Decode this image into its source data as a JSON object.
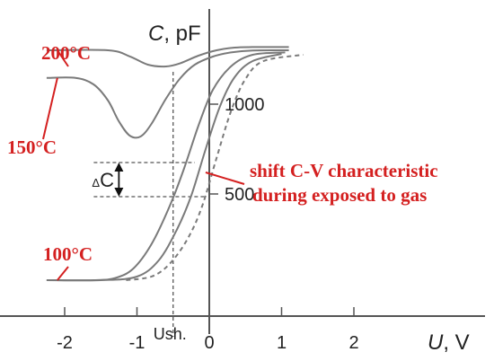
{
  "chart_data": {
    "type": "line",
    "xlabel": {
      "var": "U",
      "unit": ", V"
    },
    "ylabel": {
      "var": "C",
      "unit": ", pF"
    },
    "xlim": [
      -2.8,
      3.85
    ],
    "ylim": [
      -180,
      1780
    ],
    "x_ticks": [
      {
        "value": -2,
        "label": "-2"
      },
      {
        "value": -1,
        "label": "-1"
      },
      {
        "value": 0,
        "label": "0"
      },
      {
        "value": 1,
        "label": "1"
      },
      {
        "value": 2,
        "label": "2"
      }
    ],
    "y_ticks": [
      {
        "value": 500,
        "label": "500"
      },
      {
        "value": 1000,
        "label": "1000"
      }
    ],
    "grid": false,
    "legend": "none",
    "series": [
      {
        "style": "solid",
        "points": [
          [
            -2.25,
            1300
          ],
          [
            -1.4,
            1300
          ],
          [
            -1.1,
            1266
          ],
          [
            -0.85,
            1220
          ],
          [
            -0.6,
            1210
          ],
          [
            -0.4,
            1228
          ],
          [
            -0.15,
            1270
          ],
          [
            0.1,
            1300
          ],
          [
            0.35,
            1315
          ],
          [
            0.6,
            1318
          ],
          [
            1.1,
            1318
          ]
        ]
      },
      {
        "style": "solid",
        "points": [
          [
            -2.25,
            1146
          ],
          [
            -1.85,
            1146
          ],
          [
            -1.6,
            1110
          ],
          [
            -1.4,
            1020
          ],
          [
            -1.25,
            904
          ],
          [
            -1.1,
            825
          ],
          [
            -0.95,
            820
          ],
          [
            -0.8,
            890
          ],
          [
            -0.6,
            1030
          ],
          [
            -0.4,
            1145
          ],
          [
            -0.2,
            1220
          ],
          [
            0.05,
            1265
          ],
          [
            0.3,
            1288
          ],
          [
            0.6,
            1299
          ],
          [
            1.1,
            1300
          ]
        ]
      },
      {
        "style": "solid",
        "points": [
          [
            -2.25,
            20
          ],
          [
            -1.6,
            20
          ],
          [
            -1.3,
            32
          ],
          [
            -1.05,
            85
          ],
          [
            -0.8,
            220
          ],
          [
            -0.55,
            430
          ],
          [
            -0.35,
            640
          ],
          [
            -0.15,
            880
          ],
          [
            0.05,
            1080
          ],
          [
            0.3,
            1210
          ],
          [
            0.6,
            1275
          ],
          [
            1.05,
            1288
          ]
        ]
      },
      {
        "style": "solid",
        "points": [
          [
            -2.25,
            20
          ],
          [
            -1.5,
            20
          ],
          [
            -1.0,
            40
          ],
          [
            -0.7,
            130
          ],
          [
            -0.45,
            300
          ],
          [
            -0.25,
            490
          ],
          [
            -0.05,
            750
          ],
          [
            0.15,
            990
          ],
          [
            0.35,
            1150
          ],
          [
            0.6,
            1240
          ],
          [
            1.0,
            1280
          ]
        ]
      },
      {
        "style": "dashed",
        "points": [
          [
            -1.15,
            20
          ],
          [
            -0.8,
            40
          ],
          [
            -0.55,
            110
          ],
          [
            -0.3,
            250
          ],
          [
            -0.1,
            430
          ],
          [
            0.1,
            700
          ],
          [
            0.3,
            960
          ],
          [
            0.5,
            1140
          ],
          [
            0.75,
            1240
          ],
          [
            1.3,
            1275
          ]
        ]
      }
    ],
    "annotations": {
      "t200": {
        "label": "200°C",
        "target": [
          -2.25,
          1300
        ]
      },
      "t150": {
        "label": "150°C",
        "target": [
          -2.25,
          1146
        ]
      },
      "t100": {
        "label": "100°C",
        "target": [
          -2.25,
          20
        ]
      },
      "shift": {
        "line1": "shift C-V characteristic",
        "line2": "during exposed to gas",
        "target": [
          -0.1,
          650
        ]
      },
      "delta_c": {
        "label_main": "C",
        "label_sub": "Δ",
        "top": 675,
        "bottom": 485,
        "x": -1.25
      },
      "ush": {
        "label": "Ush.",
        "x": -0.5
      }
    }
  }
}
